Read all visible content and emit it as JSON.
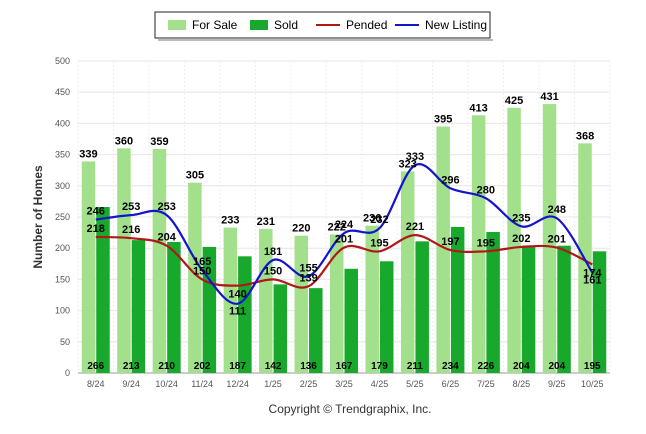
{
  "chart_data": {
    "type": "bar",
    "title": "",
    "xlabel": "",
    "ylabel": "Number of Homes",
    "ylim": [
      0,
      500
    ],
    "yticks": [
      0,
      50,
      100,
      150,
      200,
      250,
      300,
      350,
      400,
      450,
      500
    ],
    "grid": true,
    "legend_position": "top-center",
    "categories": [
      "8/24",
      "9/24",
      "10/24",
      "11/24",
      "12/24",
      "1/25",
      "2/25",
      "3/25",
      "4/25",
      "5/25",
      "6/25",
      "7/25",
      "8/25",
      "9/25",
      "10/25"
    ],
    "series": [
      {
        "name": "For Sale",
        "kind": "bar",
        "color": "#a3e08c",
        "values": [
          339,
          360,
          359,
          305,
          233,
          231,
          220,
          222,
          236,
          323,
          395,
          413,
          425,
          431,
          368
        ]
      },
      {
        "name": "Sold",
        "kind": "bar",
        "color": "#18a82c",
        "values": [
          266,
          213,
          210,
          202,
          187,
          142,
          136,
          167,
          179,
          211,
          234,
          226,
          204,
          204,
          195
        ]
      },
      {
        "name": "Pended",
        "kind": "line",
        "color": "#b01818",
        "values": [
          218,
          216,
          204,
          150,
          140,
          150,
          139,
          201,
          195,
          221,
          197,
          195,
          202,
          201,
          174
        ]
      },
      {
        "name": "New Listing",
        "kind": "line",
        "color": "#1414cc",
        "values": [
          246,
          253,
          253,
          165,
          111,
          181,
          155,
          224,
          232,
          333,
          296,
          280,
          235,
          248,
          161
        ]
      }
    ],
    "copyright": "Copyright © Trendgraphix, Inc."
  }
}
